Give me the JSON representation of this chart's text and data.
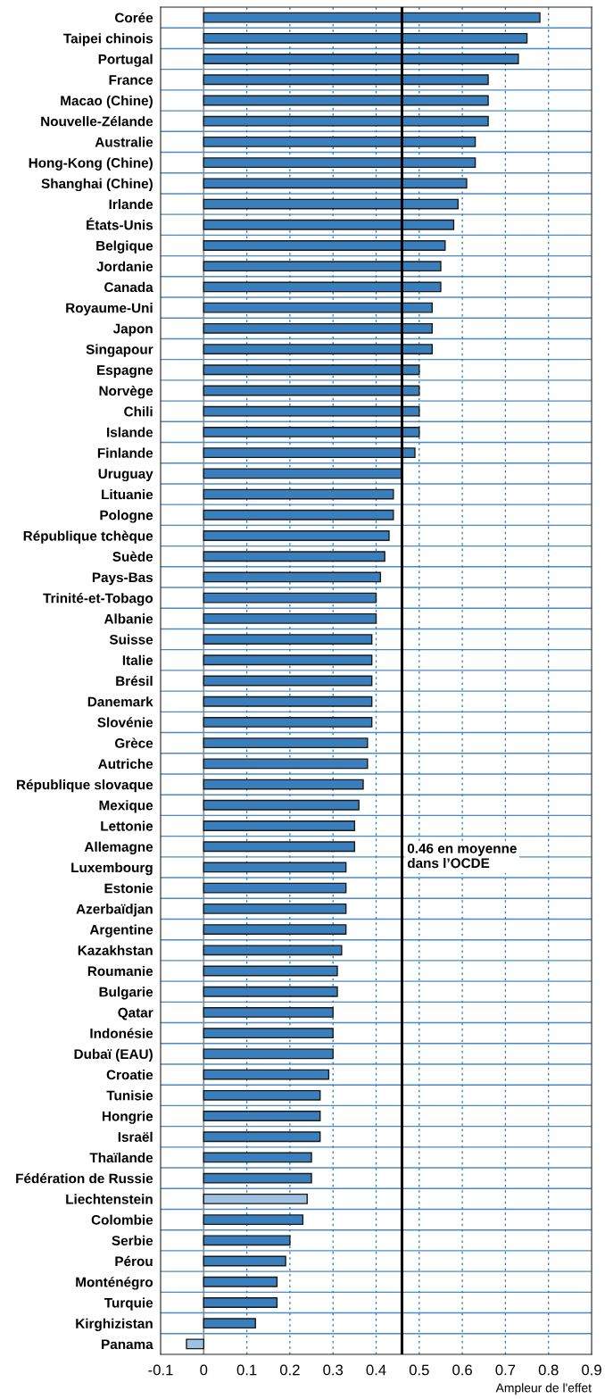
{
  "chart_data": {
    "type": "bar",
    "orientation": "horizontal",
    "xlabel": "Ampleur de l'effet",
    "categories": [
      "Corée",
      "Taipei chinois",
      "Portugal",
      "France",
      "Macao (Chine)",
      "Nouvelle-Zélande",
      "Australie",
      "Hong-Kong (Chine)",
      "Shanghai (Chine)",
      "Irlande",
      "États-Unis",
      "Belgique",
      "Jordanie",
      "Canada",
      "Royaume-Uni",
      "Japon",
      "Singapour",
      "Espagne",
      "Norvège",
      "Chili",
      "Islande",
      "Finlande",
      "Uruguay",
      "Lituanie",
      "Pologne",
      "République tchèque",
      "Suède",
      "Pays-Bas",
      "Trinité-et-Tobago",
      "Albanie",
      "Suisse",
      "Italie",
      "Brésil",
      "Danemark",
      "Slovénie",
      "Grèce",
      "Autriche",
      "République slovaque",
      "Mexique",
      "Lettonie",
      "Allemagne",
      "Luxembourg",
      "Estonie",
      "Azerbaïdjan",
      "Argentine",
      "Kazakhstan",
      "Roumanie",
      "Bulgarie",
      "Qatar",
      "Indonésie",
      "Dubaï (EAU)",
      "Croatie",
      "Tunisie",
      "Hongrie",
      "Israël",
      "Thaïlande",
      "Fédération de Russie",
      "Liechtenstein",
      "Colombie",
      "Serbie",
      "Pérou",
      "Monténégro",
      "Turquie",
      "Kirghizistan",
      "Panama"
    ],
    "values": [
      0.78,
      0.75,
      0.73,
      0.66,
      0.66,
      0.66,
      0.63,
      0.63,
      0.61,
      0.59,
      0.58,
      0.56,
      0.55,
      0.55,
      0.53,
      0.53,
      0.53,
      0.5,
      0.5,
      0.5,
      0.5,
      0.49,
      0.46,
      0.44,
      0.44,
      0.43,
      0.42,
      0.41,
      0.4,
      0.4,
      0.39,
      0.39,
      0.39,
      0.39,
      0.39,
      0.38,
      0.38,
      0.37,
      0.36,
      0.35,
      0.35,
      0.33,
      0.33,
      0.33,
      0.33,
      0.32,
      0.31,
      0.31,
      0.3,
      0.3,
      0.3,
      0.29,
      0.27,
      0.27,
      0.27,
      0.25,
      0.25,
      0.24,
      0.23,
      0.2,
      0.19,
      0.17,
      0.17,
      0.12,
      -0.04
    ],
    "colors": [
      "#3a7fbd",
      "#3a7fbd",
      "#3a7fbd",
      "#3a7fbd",
      "#3a7fbd",
      "#3a7fbd",
      "#3a7fbd",
      "#3a7fbd",
      "#3a7fbd",
      "#3a7fbd",
      "#3a7fbd",
      "#3a7fbd",
      "#3a7fbd",
      "#3a7fbd",
      "#3a7fbd",
      "#3a7fbd",
      "#3a7fbd",
      "#3a7fbd",
      "#3a7fbd",
      "#3a7fbd",
      "#3a7fbd",
      "#3a7fbd",
      "#3a7fbd",
      "#3a7fbd",
      "#3a7fbd",
      "#3a7fbd",
      "#3a7fbd",
      "#3a7fbd",
      "#3a7fbd",
      "#3a7fbd",
      "#3a7fbd",
      "#3a7fbd",
      "#3a7fbd",
      "#3a7fbd",
      "#3a7fbd",
      "#3a7fbd",
      "#3a7fbd",
      "#3a7fbd",
      "#3a7fbd",
      "#3a7fbd",
      "#3a7fbd",
      "#3a7fbd",
      "#3a7fbd",
      "#3a7fbd",
      "#3a7fbd",
      "#3a7fbd",
      "#3a7fbd",
      "#3a7fbd",
      "#3a7fbd",
      "#3a7fbd",
      "#3a7fbd",
      "#3a7fbd",
      "#3a7fbd",
      "#3a7fbd",
      "#3a7fbd",
      "#3a7fbd",
      "#3a7fbd",
      "#9fc2e2",
      "#3a7fbd",
      "#3a7fbd",
      "#3a7fbd",
      "#3a7fbd",
      "#3a7fbd",
      "#3a7fbd",
      "#9fc2e2"
    ],
    "xlim": [
      -0.1,
      0.9
    ],
    "xticks": [
      -0.1,
      0,
      0.1,
      0.2,
      0.3,
      0.4,
      0.5,
      0.6,
      0.7,
      0.8,
      0.9
    ],
    "ref_lines": [
      {
        "axis": "x",
        "value": 0.46,
        "label": "0.46 en moyenne\ndans l’OCDE",
        "color": "#000000"
      }
    ],
    "grid": true
  }
}
